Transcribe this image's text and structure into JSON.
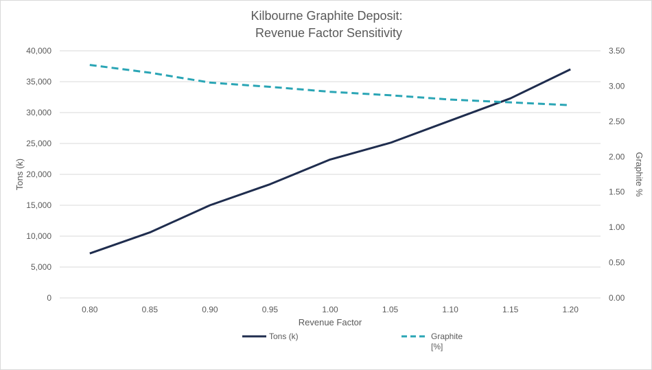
{
  "chart_data": {
    "type": "line",
    "title": [
      "Kilbourne Graphite Deposit:",
      "Revenue Factor Sensitivity"
    ],
    "xlabel": "Revenue Factor",
    "ylabel_left": "Tons (k)",
    "ylabel_right": "Graphite %",
    "x": [
      "0.80",
      "0.85",
      "0.90",
      "0.95",
      "1.00",
      "1.05",
      "1.10",
      "1.15",
      "1.20"
    ],
    "ylim_left": [
      0,
      40000
    ],
    "ylim_right": [
      0,
      3.5
    ],
    "yticks_left": [
      "0",
      "5,000",
      "10,000",
      "15,000",
      "20,000",
      "25,000",
      "30,000",
      "35,000",
      "40,000"
    ],
    "yticks_right": [
      "0.00",
      "0.50",
      "1.00",
      "1.50",
      "2.00",
      "2.50",
      "3.00",
      "3.50"
    ],
    "grid": true,
    "legend_position": "bottom",
    "series": [
      {
        "name": "Tons (k)",
        "axis": "left",
        "style": "solid",
        "color": "#1f2d4e",
        "values": [
          7200,
          10600,
          15000,
          18400,
          22400,
          25100,
          28700,
          32300,
          37000
        ]
      },
      {
        "name": "Graphite [%]",
        "legend_lines": [
          "Graphite",
          "[%]"
        ],
        "axis": "right",
        "style": "dashed",
        "color": "#2aa5b5",
        "values": [
          3.3,
          3.19,
          3.05,
          2.99,
          2.92,
          2.87,
          2.81,
          2.77,
          2.73
        ]
      }
    ]
  }
}
